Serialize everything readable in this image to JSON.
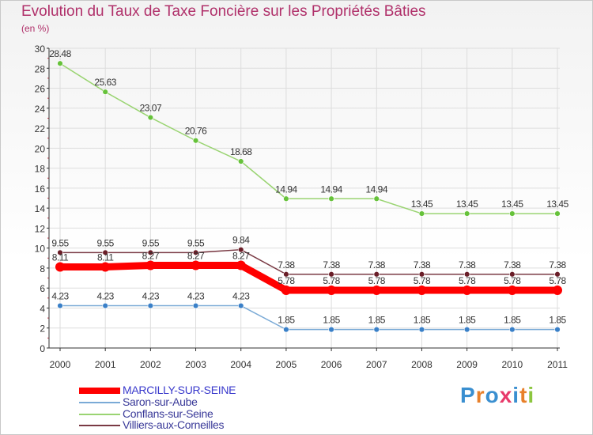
{
  "title": "Evolution du Taux de Taxe Foncière sur les Propriétés Bâties",
  "unit": "(en %)",
  "brand": {
    "letters": [
      "P",
      "r",
      "o",
      "x",
      "i",
      "t",
      "i"
    ],
    "colors": [
      "#3a8fd0",
      "#e8802a",
      "#3a8fd0",
      "#e83a6a",
      "#3a8fd0",
      "#e8802a",
      "#8cc63f"
    ]
  },
  "chart_data": {
    "type": "line",
    "title": "Evolution du Taux de Taxe Foncière sur les Propriétés Bâties",
    "ylabel": "(en %)",
    "xlabel": "",
    "ylim": [
      0,
      30
    ],
    "yticks": [
      0,
      2,
      4,
      6,
      8,
      10,
      12,
      14,
      16,
      18,
      20,
      22,
      24,
      26,
      28,
      30
    ],
    "x": [
      "2000",
      "2001",
      "2002",
      "2003",
      "2004",
      "2005",
      "2006",
      "2007",
      "2008",
      "2009",
      "2010",
      "2011"
    ],
    "legend_position": "bottom-left",
    "series": [
      {
        "name": "MARCILLY-SUR-SEINE",
        "color": "#ff0000",
        "marker": "#ff0000",
        "thick": true,
        "values": [
          8.11,
          8.11,
          8.27,
          8.27,
          8.27,
          5.78,
          5.78,
          5.78,
          5.78,
          5.78,
          5.78,
          5.78
        ],
        "labels": [
          "8.11",
          "8.11",
          "8.27",
          "8.27",
          "8.27",
          "5.78",
          "5.78",
          "5.78",
          "5.78",
          "5.78",
          "5.78",
          "5.78"
        ]
      },
      {
        "name": "Saron-sur-Aube",
        "color": "#7aaad6",
        "marker": "#3a80c8",
        "thick": false,
        "values": [
          4.23,
          4.23,
          4.23,
          4.23,
          4.23,
          1.85,
          1.85,
          1.85,
          1.85,
          1.85,
          1.85,
          1.85
        ],
        "labels": [
          "4.23",
          "4.23",
          "4.23",
          "4.23",
          "4.23",
          "1.85",
          "1.85",
          "1.85",
          "1.85",
          "1.85",
          "1.85",
          "1.85"
        ]
      },
      {
        "name": "Conflans-sur-Seine",
        "color": "#9ad472",
        "marker": "#66c23a",
        "thick": false,
        "values": [
          28.48,
          25.63,
          23.07,
          20.76,
          18.68,
          14.94,
          14.94,
          14.94,
          13.45,
          13.45,
          13.45,
          13.45
        ],
        "labels": [
          "28.48",
          "25.63",
          "23.07",
          "20.76",
          "18.68",
          "14.94",
          "14.94",
          "14.94",
          "13.45",
          "13.45",
          "13.45",
          "13.45"
        ]
      },
      {
        "name": "Villiers-aux-Corneilles",
        "color": "#7a3a44",
        "marker": "#6a1e28",
        "thick": false,
        "values": [
          9.55,
          9.55,
          9.55,
          9.55,
          9.84,
          7.38,
          7.38,
          7.38,
          7.38,
          7.38,
          7.38,
          7.38
        ],
        "labels": [
          "9.55",
          "9.55",
          "9.55",
          "9.55",
          "9.84",
          "7.38",
          "7.38",
          "7.38",
          "7.38",
          "7.38",
          "7.38",
          "7.38"
        ]
      }
    ]
  }
}
